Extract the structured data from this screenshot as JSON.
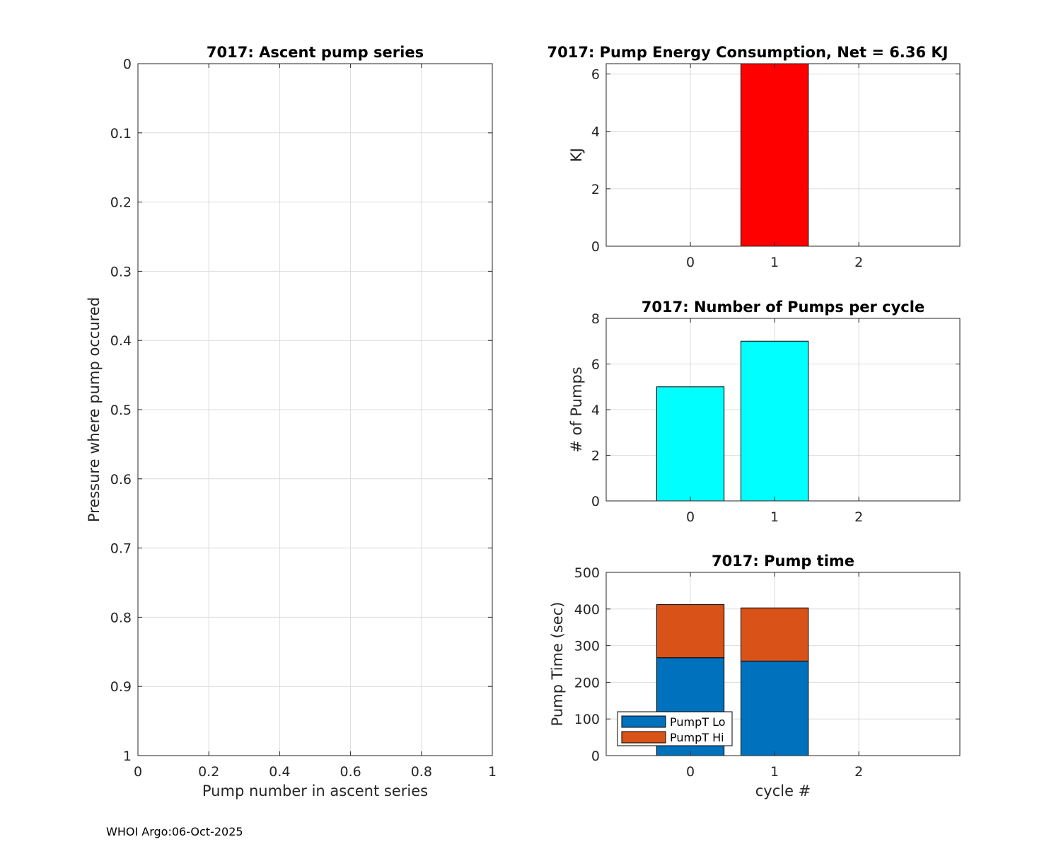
{
  "footer": "WHOI Argo:06-Oct-2025",
  "colors": {
    "energy_bar": "#ff0000",
    "pumps_bar": "#00ffff",
    "pump_lo": "#0072bd",
    "pump_hi": "#d95319",
    "grid": "#dcdcdc",
    "axis": "#262626"
  },
  "chart_data": [
    {
      "id": "ascent",
      "type": "scatter",
      "title": "7017: Ascent pump series",
      "xlabel": "Pump number in ascent series",
      "ylabel": "Pressure where pump occured",
      "xlim": [
        0,
        1
      ],
      "ylim": [
        0,
        1
      ],
      "y_reversed": true,
      "xticks": [
        "0",
        "0.2",
        "0.4",
        "0.6",
        "0.8",
        "1"
      ],
      "yticks": [
        "0",
        "0.1",
        "0.2",
        "0.3",
        "0.4",
        "0.5",
        "0.6",
        "0.7",
        "0.8",
        "0.9",
        "1"
      ],
      "grid": true,
      "points": []
    },
    {
      "id": "energy",
      "type": "bar",
      "title": "7017: Pump Energy Consumption,  Net =   6.36 KJ",
      "xlabel": "",
      "ylabel": "KJ",
      "xlim": [
        -1,
        3.2
      ],
      "ylim": [
        0,
        6.36
      ],
      "categories": [
        "0",
        "1",
        "2"
      ],
      "xpos": [
        0,
        1,
        2
      ],
      "values": [
        0,
        6.36,
        0
      ],
      "yticks": [
        "0",
        "2",
        "4",
        "6"
      ],
      "grid": true
    },
    {
      "id": "pumps",
      "type": "bar",
      "title": "7017: Number of Pumps per cycle",
      "xlabel": "",
      "ylabel": "# of Pumps",
      "xlim": [
        -1,
        3.2
      ],
      "ylim": [
        0,
        8
      ],
      "categories": [
        "0",
        "1",
        "2"
      ],
      "xpos": [
        0,
        1,
        2
      ],
      "values": [
        5,
        7,
        0
      ],
      "yticks": [
        "0",
        "2",
        "4",
        "6",
        "8"
      ],
      "grid": true
    },
    {
      "id": "pumptime",
      "type": "bar",
      "stacked": true,
      "title": "7017: Pump time",
      "xlabel": "cycle #",
      "ylabel": "Pump Time (sec)",
      "xlim": [
        -1,
        3.2
      ],
      "ylim": [
        0,
        500
      ],
      "categories": [
        "0",
        "1",
        "2"
      ],
      "xpos": [
        0,
        1,
        2
      ],
      "yticks": [
        "0",
        "100",
        "200",
        "300",
        "400",
        "500"
      ],
      "grid": true,
      "legend": "bottom-left",
      "series": [
        {
          "name": "PumpT Lo",
          "values": [
            267,
            258,
            0
          ]
        },
        {
          "name": "PumpT Hi",
          "values": [
            145,
            145,
            0
          ]
        }
      ]
    }
  ]
}
